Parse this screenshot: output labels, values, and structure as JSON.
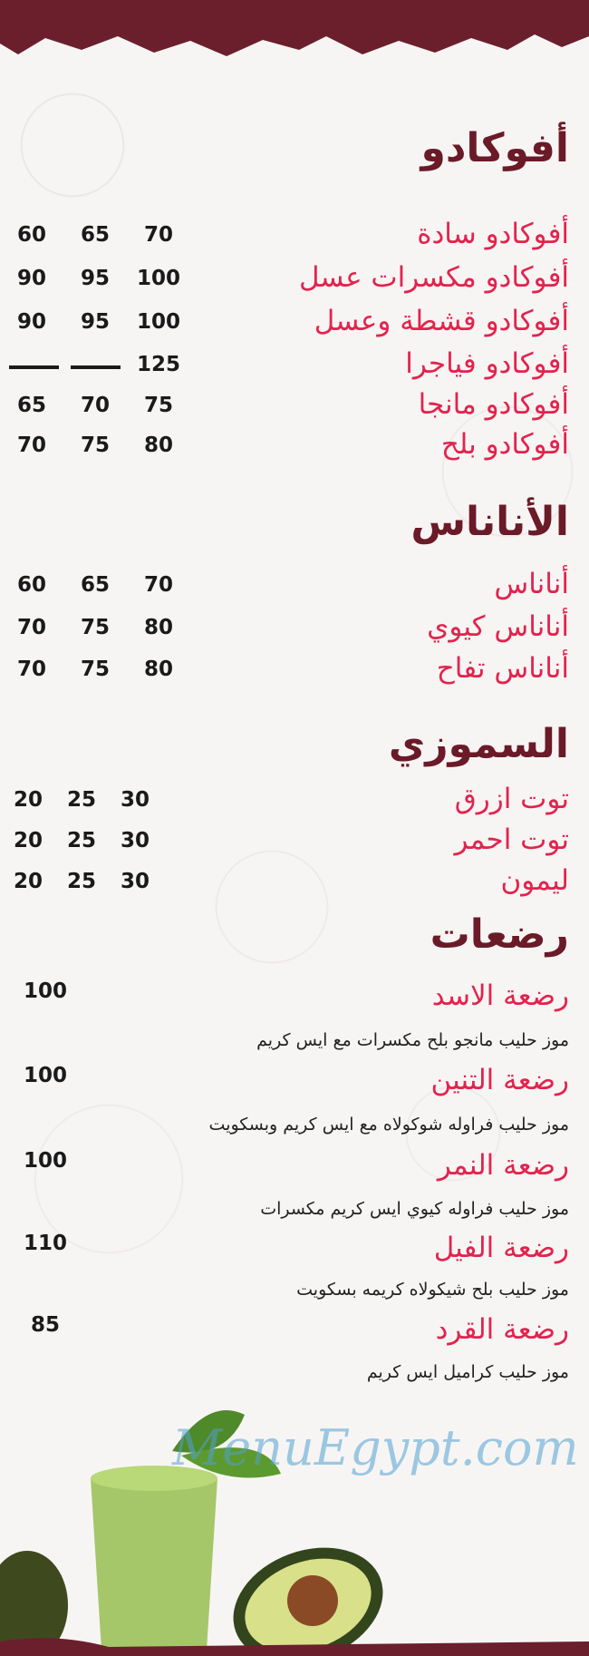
{
  "colors": {
    "title": "#6b1a28",
    "item": "#e2234d",
    "price": "#1a1a1a",
    "band": "#6b1f2c"
  },
  "watermark": "MenuEgypt.com",
  "sections": [
    {
      "title": "أفوكادو",
      "items": [
        {
          "name": "أفوكادو سادة",
          "prices": [
            "70",
            "65",
            "60"
          ]
        },
        {
          "name": "أفوكادو مكسرات عسل",
          "prices": [
            "100",
            "95",
            "90"
          ]
        },
        {
          "name": "أفوكادو قشطة وعسل",
          "prices": [
            "100",
            "95",
            "90"
          ]
        },
        {
          "name": "أفوكادو فياجرا",
          "prices": [
            "125",
            "—",
            "—"
          ]
        },
        {
          "name": "أفوكادو مانجا",
          "prices": [
            "75",
            "70",
            "65"
          ]
        },
        {
          "name": "أفوكادو بلح",
          "prices": [
            "80",
            "75",
            "70"
          ]
        }
      ]
    },
    {
      "title": "الأناناس",
      "items": [
        {
          "name": "أناناس",
          "prices": [
            "70",
            "65",
            "60"
          ]
        },
        {
          "name": "أناناس كيوي",
          "prices": [
            "80",
            "75",
            "70"
          ]
        },
        {
          "name": "أناناس تفاح",
          "prices": [
            "80",
            "75",
            "70"
          ]
        }
      ]
    },
    {
      "title": "السموزي",
      "items": [
        {
          "name": "توت ازرق",
          "prices": [
            "30",
            "25",
            "20"
          ]
        },
        {
          "name": "توت احمر",
          "prices": [
            "30",
            "25",
            "20"
          ]
        },
        {
          "name": "ليمون",
          "prices": [
            "30",
            "25",
            "20"
          ]
        }
      ]
    },
    {
      "title": "رضعات",
      "items": [
        {
          "name": "رضعة الاسد",
          "price": "100",
          "desc": "موز حليب مانجو بلح مكسرات مع ايس كريم"
        },
        {
          "name": "رضعة التنين",
          "price": "100",
          "desc": "موز حليب فراوله شوكولاه مع ايس كريم وبسكويت"
        },
        {
          "name": "رضعة النمر",
          "price": "100",
          "desc": "موز حليب فراوله كيوي ايس كريم مكسرات"
        },
        {
          "name": "رضعة الفيل",
          "price": "110",
          "desc": "موز حليب بلح شيكولاه كريمه بسكويت"
        },
        {
          "name": "رضعة القرد",
          "price": "85",
          "desc": "موز حليب كراميل ايس كريم"
        }
      ]
    }
  ]
}
